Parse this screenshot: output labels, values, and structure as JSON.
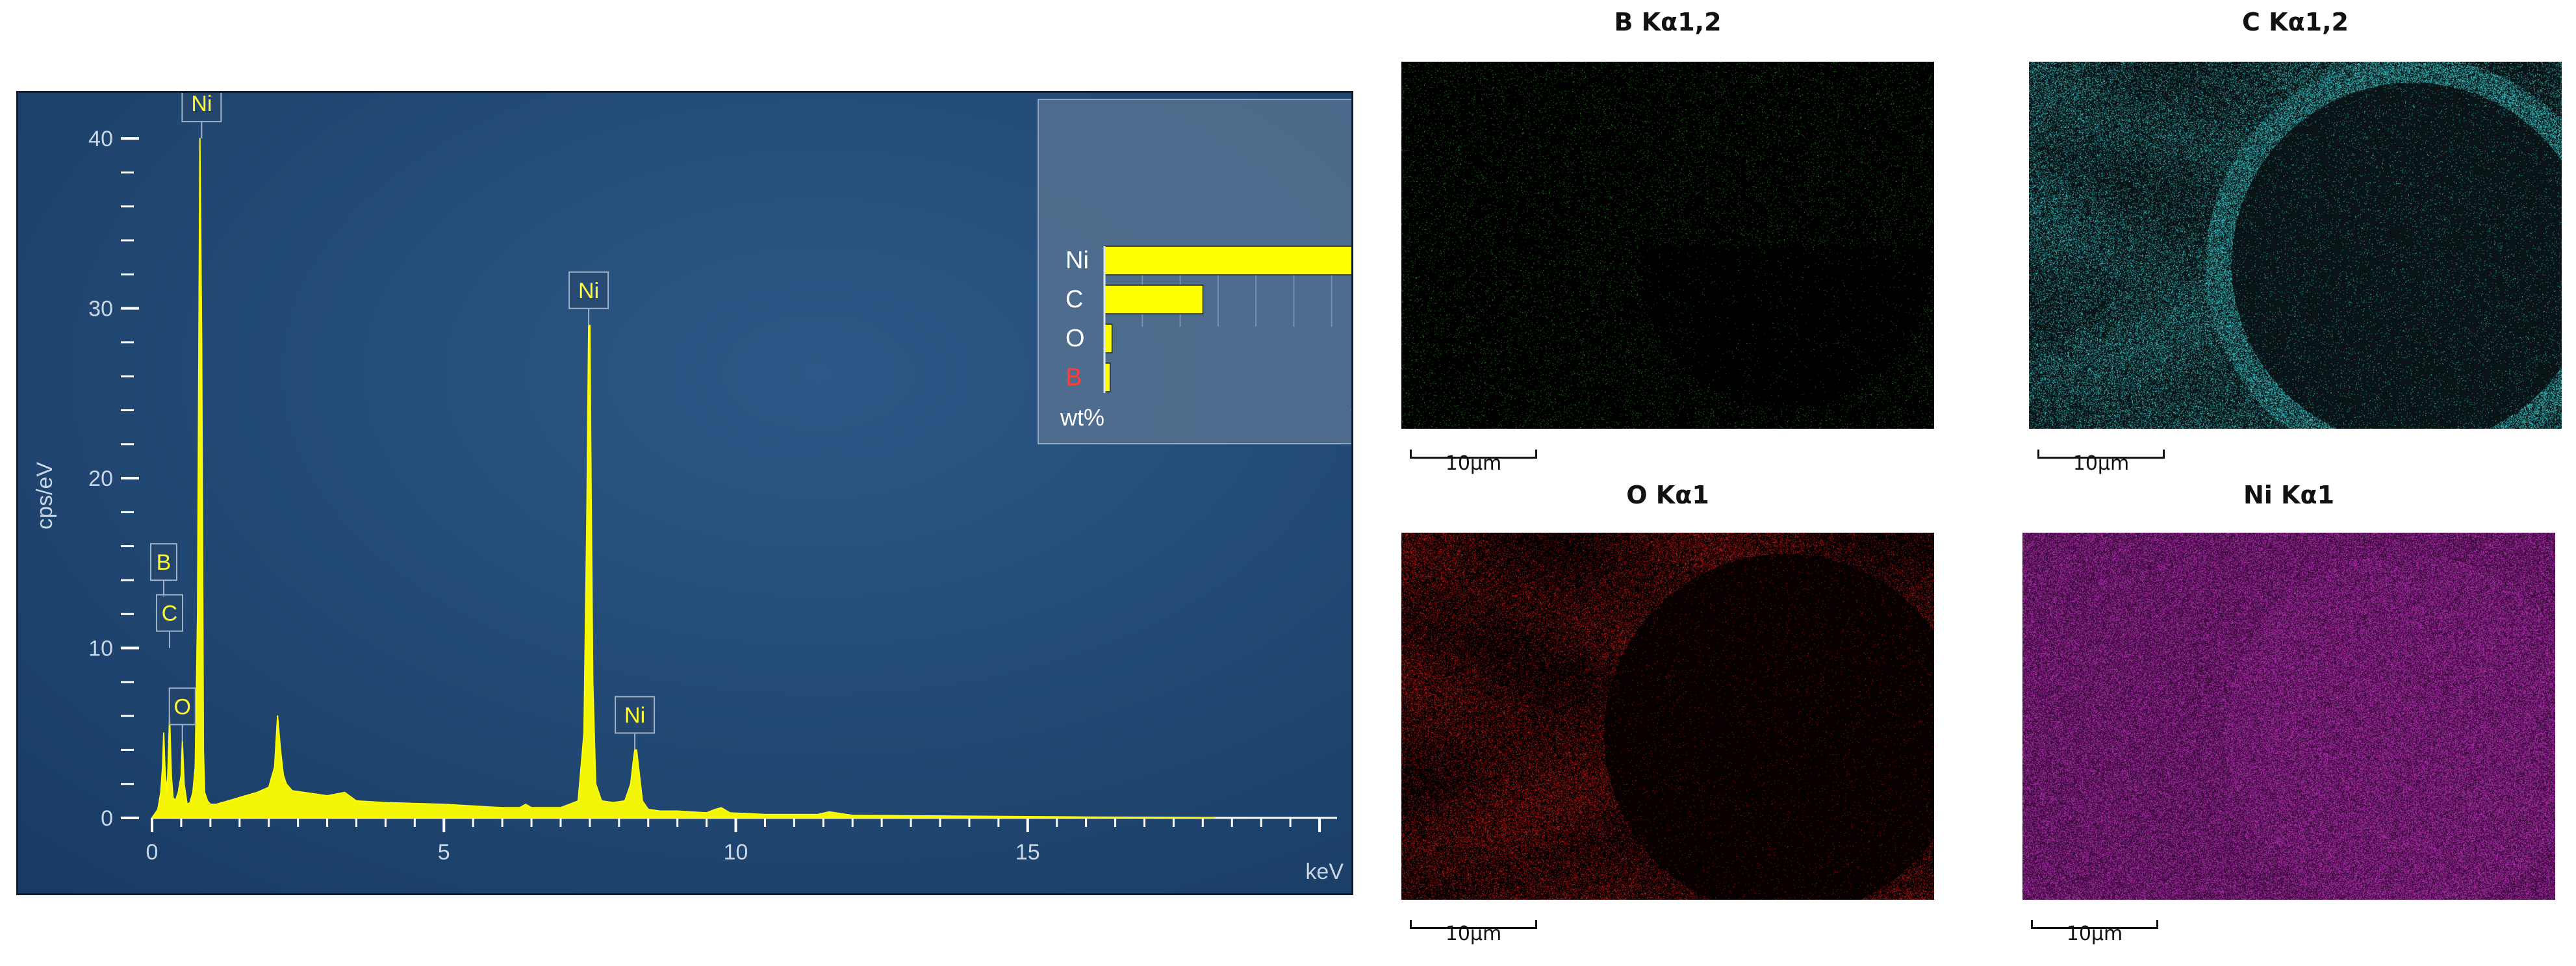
{
  "chart_data": [
    {
      "type": "line",
      "xlabel": "keV",
      "ylabel": "cps/eV",
      "xlim": [
        0,
        20.3
      ],
      "ylim": [
        0,
        41
      ],
      "x_ticks": [
        0,
        5,
        10,
        15
      ],
      "y_ticks": [
        0,
        10,
        20,
        30,
        40
      ],
      "grid": false,
      "background": "#1a3d66",
      "line_color": "#ffff00",
      "series": [
        {
          "x": [
            0,
            0.1,
            0.15,
            0.18,
            0.2,
            0.22,
            0.25,
            0.27,
            0.3,
            0.33,
            0.36,
            0.4,
            0.45,
            0.5,
            0.52,
            0.55,
            0.6,
            0.65,
            0.7,
            0.74,
            0.78,
            0.82,
            0.85,
            0.88,
            0.9,
            0.95,
            1.0,
            1.1,
            1.3,
            1.6,
            1.8,
            2.0,
            2.1,
            2.15,
            2.2,
            2.25,
            2.3,
            2.4,
            2.6,
            3.0,
            3.3,
            3.5,
            4.0,
            5.0,
            6.0,
            6.3,
            6.4,
            6.5,
            7.0,
            7.3,
            7.4,
            7.45,
            7.48,
            7.5,
            7.52,
            7.55,
            7.6,
            7.7,
            7.9,
            8.1,
            8.2,
            8.25,
            8.27,
            8.3,
            8.35,
            8.4,
            8.5,
            8.7,
            9.0,
            9.5,
            9.65,
            9.75,
            9.9,
            10.5,
            11.0,
            11.4,
            11.6,
            12.0,
            14.0,
            16.0,
            18.0,
            18.2
          ],
          "y": [
            0,
            0.5,
            1.5,
            3,
            5,
            3,
            1.5,
            2.5,
            6,
            2.5,
            1.2,
            1.0,
            1.5,
            2.5,
            4.5,
            2.0,
            0.8,
            0.9,
            1.5,
            3.0,
            12,
            40,
            28,
            4,
            1.5,
            1.0,
            0.8,
            0.8,
            1.0,
            1.3,
            1.5,
            1.8,
            3,
            6,
            4,
            2.5,
            2.0,
            1.6,
            1.5,
            1.3,
            1.5,
            1.0,
            0.9,
            0.8,
            0.6,
            0.6,
            0.8,
            0.6,
            0.6,
            1.0,
            5,
            18,
            29,
            29,
            20,
            8,
            2.0,
            1.0,
            0.9,
            1.0,
            2.0,
            3.5,
            4,
            4,
            2.5,
            1.0,
            0.5,
            0.4,
            0.4,
            0.3,
            0.5,
            0.6,
            0.3,
            0.2,
            0.2,
            0.2,
            0.35,
            0.15,
            0.1,
            0.05,
            0.02,
            0
          ]
        }
      ],
      "peak_labels": [
        {
          "text": "Ni",
          "x": 0.85,
          "y": 40
        },
        {
          "text": "Ni",
          "x": 7.48,
          "y": 29
        },
        {
          "text": "Ni",
          "x": 8.27,
          "y": 4
        },
        {
          "text": "B",
          "x": 0.2,
          "y": 13
        },
        {
          "text": "C",
          "x": 0.3,
          "y": 10
        },
        {
          "text": "O",
          "x": 0.52,
          "y": 4.5
        }
      ]
    },
    {
      "type": "bar",
      "orientation": "horizontal",
      "categories": [
        "Ni",
        "C",
        "O",
        "B"
      ],
      "values": [
        70,
        26,
        2,
        1.5
      ],
      "xlabel": "wt%",
      "xlim": [
        0,
        70
      ],
      "tick_label_max": "70",
      "bar_color": "#ffff00",
      "category_colors": [
        "#ffffff",
        "#ffffff",
        "#ffffff",
        "#ff3b3b"
      ]
    }
  ],
  "maps": [
    {
      "title": "B Kα1,2",
      "scale": "10μm",
      "base": "#000000",
      "dot": "#2f9a2a",
      "density": 0.03
    },
    {
      "title": "C Kα1,2",
      "scale": "10μm",
      "base": "#0a1416",
      "dot": "#38c8cc",
      "density": 0.22
    },
    {
      "title": "O Kα1",
      "scale": "10μm",
      "base": "#080000",
      "dot": "#c81818",
      "density": 0.18
    },
    {
      "title": "Ni Kα1",
      "scale": "10μm",
      "base": "#3c0a3c",
      "dot": "#b430b4",
      "density": 0.45
    }
  ]
}
